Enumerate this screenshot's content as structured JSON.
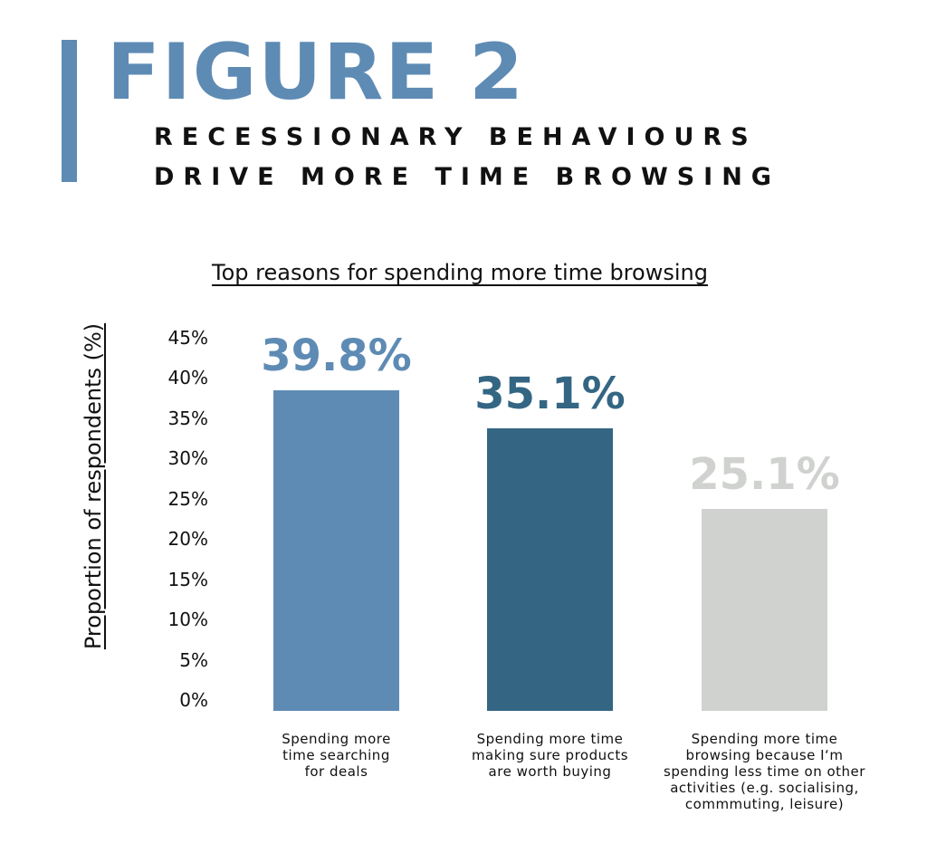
{
  "figure": {
    "title": "FIGURE 2",
    "subtitle_lines": [
      "RECESSIONARY BEHAVIOURS",
      "DRIVE MORE TIME BROWSING"
    ]
  },
  "colors": {
    "accent": "#5e8bb4",
    "series": [
      "#5e8bb4",
      "#346683",
      "#d0d2cf"
    ]
  },
  "chart_data": {
    "type": "bar",
    "title": "Top reasons for spending more time browsing",
    "xlabel": "",
    "ylabel": "Proportion of respondents (%)",
    "ylim": [
      0,
      45
    ],
    "yticks": [
      "0%",
      "5%",
      "10%",
      "15%",
      "20%",
      "25%",
      "30%",
      "35%",
      "40%",
      "45%"
    ],
    "ytick_values": [
      0,
      5,
      10,
      15,
      20,
      25,
      30,
      35,
      40,
      45
    ],
    "grid": false,
    "categories": [
      [
        "Spending more",
        "time searching",
        "for deals"
      ],
      [
        "Spending more time",
        "making sure products",
        "are worth buying"
      ],
      [
        "Spending more time",
        "browsing because I‘m",
        "spending less time on other",
        "activities (e.g. socialising,",
        "commmuting, leisure)"
      ]
    ],
    "values": [
      39.8,
      35.1,
      25.1
    ],
    "data_labels": [
      "39.8%",
      "35.1%",
      "25.1%"
    ]
  }
}
